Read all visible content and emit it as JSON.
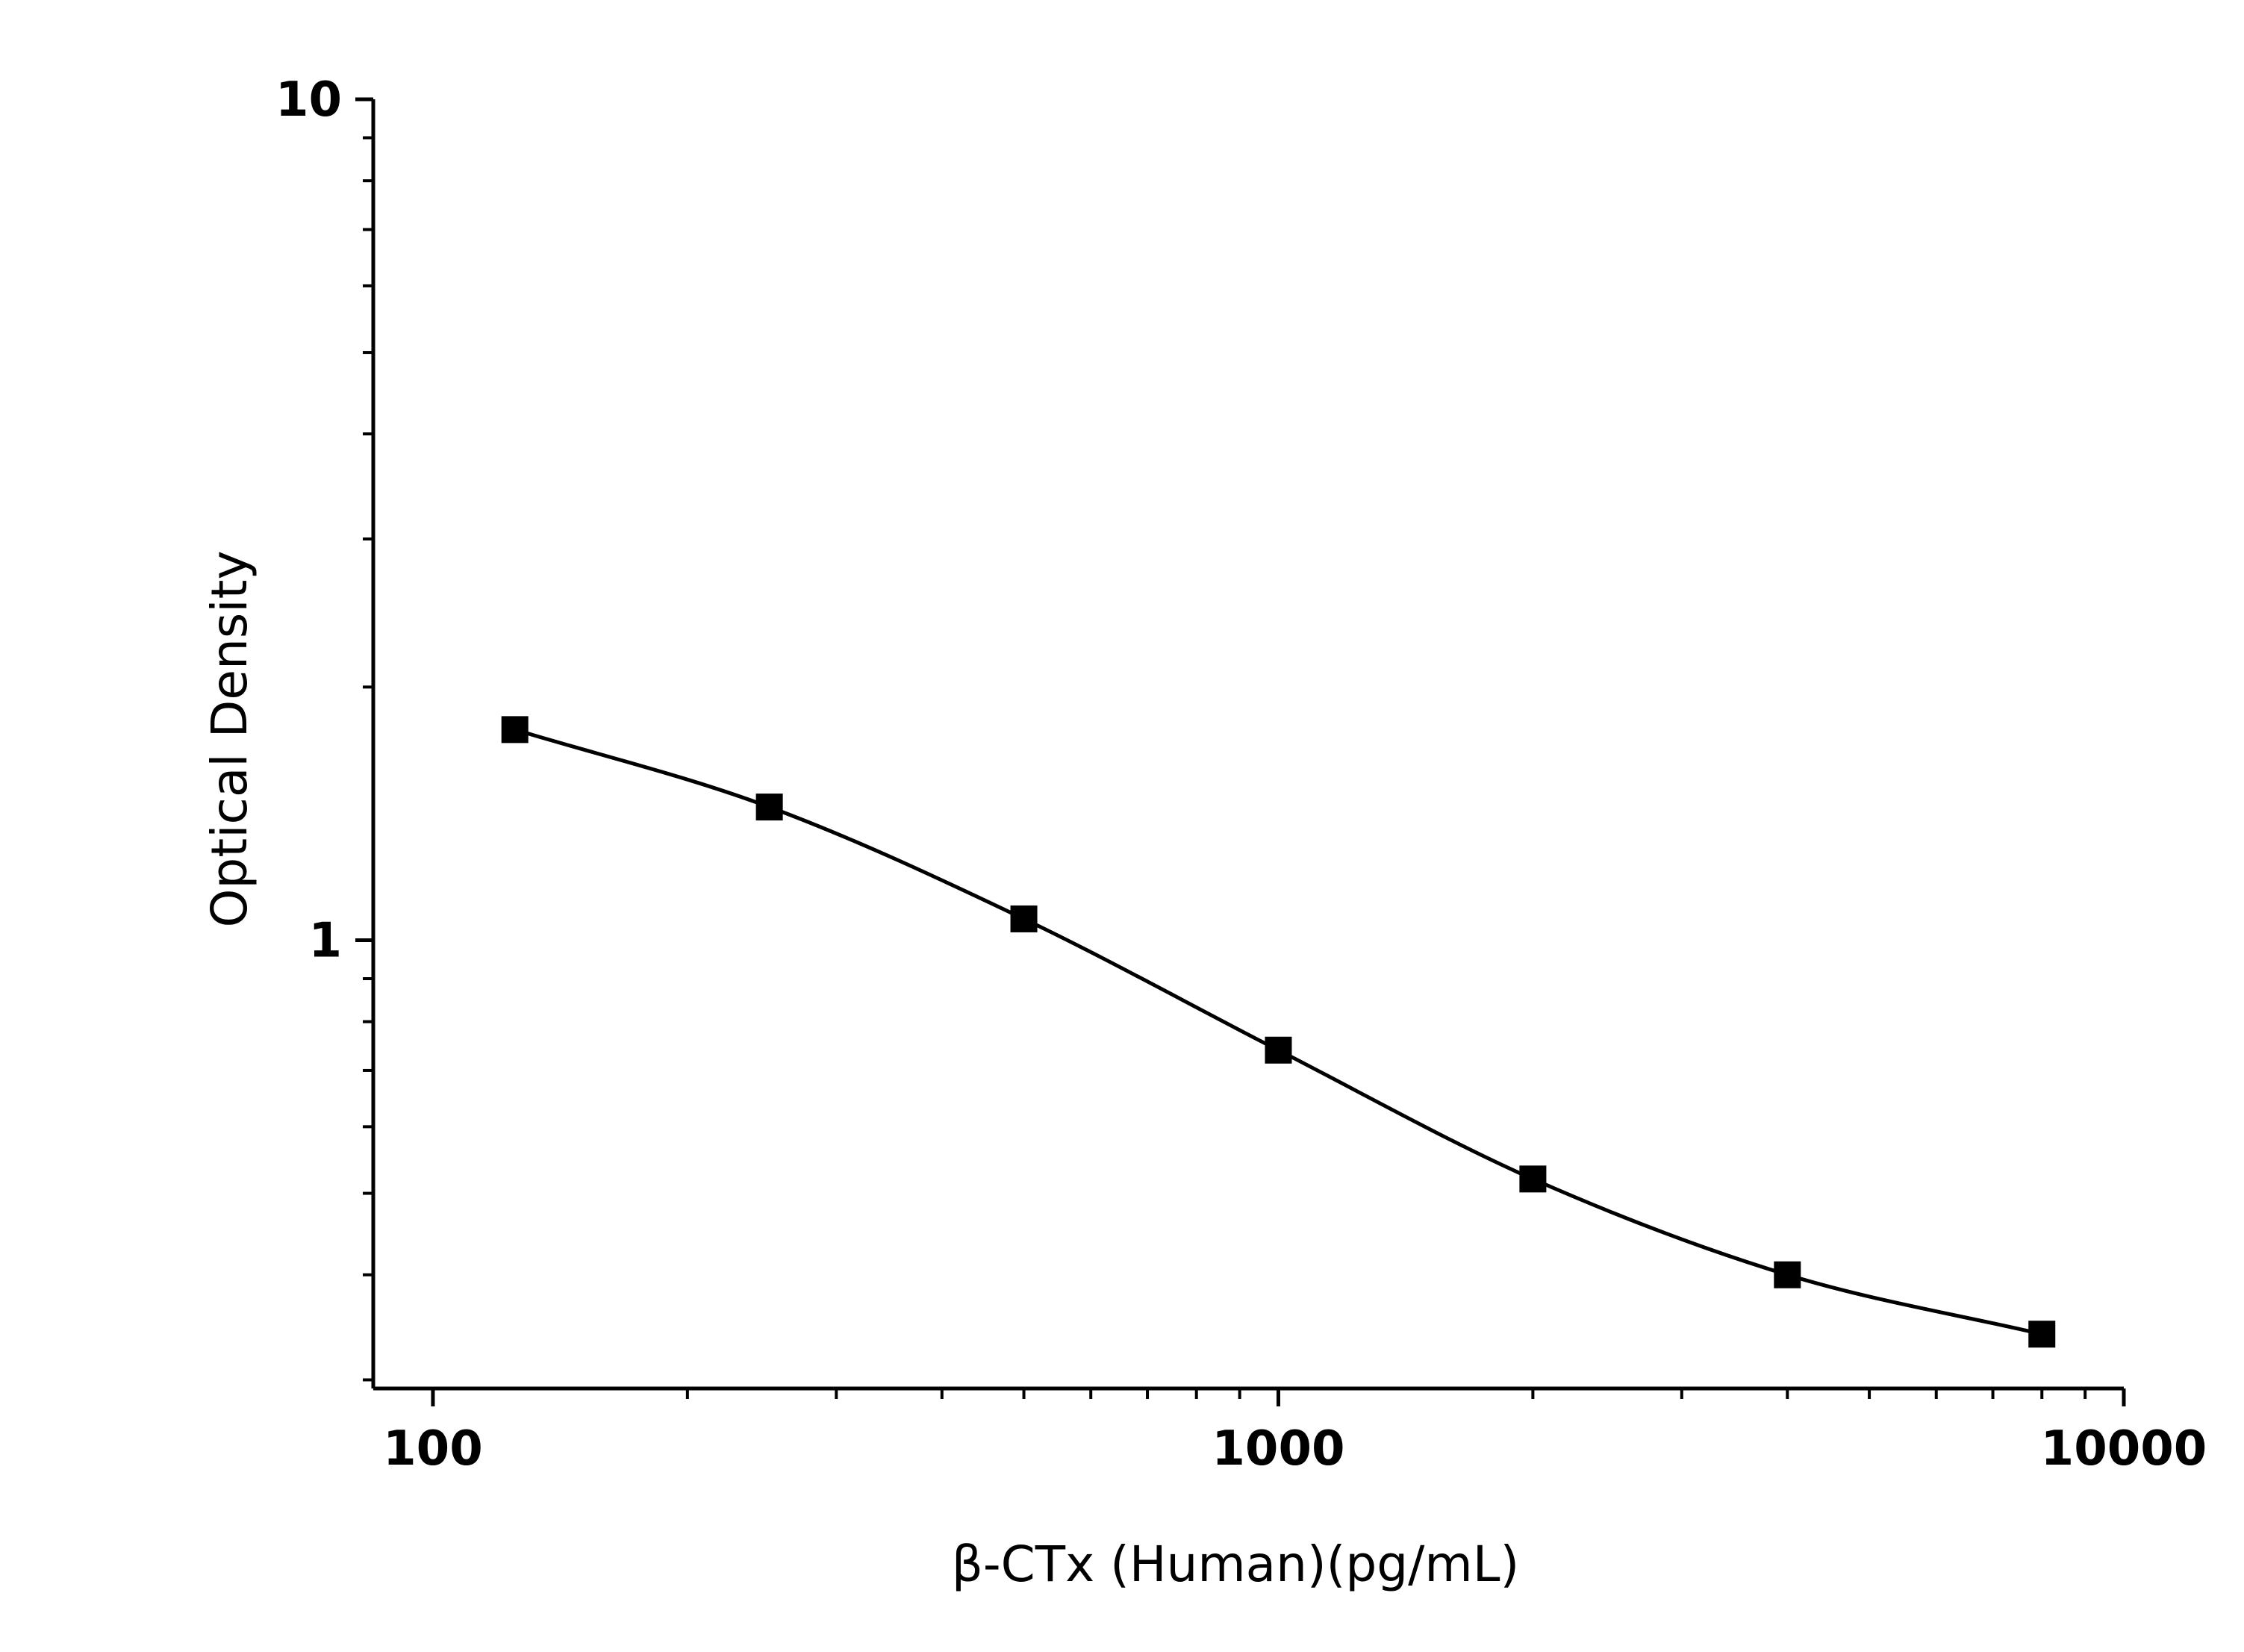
{
  "chart_data": {
    "type": "scatter",
    "title": "",
    "xlabel": "β-CTx (Human)(pg/mL)",
    "ylabel": "Optical Density",
    "x_scale": "log",
    "y_scale": "log",
    "xlim": [
      85,
      10000
    ],
    "ylim": [
      0.293,
      10
    ],
    "x_major_ticks": [
      100,
      1000,
      10000
    ],
    "x_tick_labels": [
      "100",
      "1000",
      "10000"
    ],
    "y_major_ticks": [
      1,
      10
    ],
    "y_tick_labels": [
      "1",
      "10"
    ],
    "grid": false,
    "legend": "none",
    "marker": "square",
    "line": "fitted-curve",
    "colors": {
      "series": "#000000",
      "axes": "#000000",
      "background": "#ffffff"
    },
    "series": [
      {
        "x": [
          125,
          250,
          500,
          1000,
          2000,
          4000,
          8000
        ],
        "y": [
          1.78,
          1.44,
          1.06,
          0.74,
          0.52,
          0.4,
          0.34
        ]
      }
    ]
  }
}
